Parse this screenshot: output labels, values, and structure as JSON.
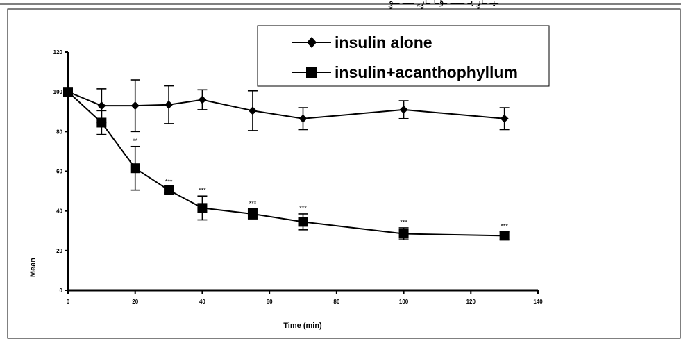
{
  "header_fragment": "ـيـ ـارٍ يـ ـــــ ـوَـا ـارٍ ٍ ــــ ــوٍ",
  "chart_data": {
    "type": "line",
    "title": "",
    "xlabel": "Time (min)",
    "ylabel": "Mean",
    "xlim": [
      0,
      140
    ],
    "ylim": [
      0,
      120
    ],
    "xticks": [
      0,
      20,
      40,
      60,
      80,
      100,
      120,
      140
    ],
    "yticks": [
      0,
      20,
      40,
      60,
      80,
      100,
      120
    ],
    "grid": false,
    "legend_position": "top-right",
    "series": [
      {
        "name": "insulin alone",
        "marker": "diamond",
        "color": "#000000",
        "x": [
          0,
          10,
          20,
          30,
          40,
          55,
          70,
          100,
          130
        ],
        "y": [
          100,
          93,
          93,
          93.5,
          96,
          90.5,
          86.5,
          91,
          86.5
        ],
        "err": [
          0,
          8.5,
          13,
          9.5,
          5,
          10,
          5.5,
          4.5,
          5.5
        ]
      },
      {
        "name": "insulin+acanthophyllum",
        "marker": "square",
        "color": "#000000",
        "x": [
          0,
          10,
          20,
          30,
          40,
          55,
          70,
          100,
          130
        ],
        "y": [
          100,
          84.5,
          61.5,
          50.5,
          41.5,
          38.5,
          34.5,
          28.5,
          27.5
        ],
        "err": [
          0,
          6,
          11,
          1.5,
          6,
          2.5,
          4,
          3,
          2
        ],
        "annotations": [
          "",
          "",
          "**",
          "***",
          "***",
          "***",
          "***",
          "***",
          "***"
        ]
      }
    ]
  }
}
